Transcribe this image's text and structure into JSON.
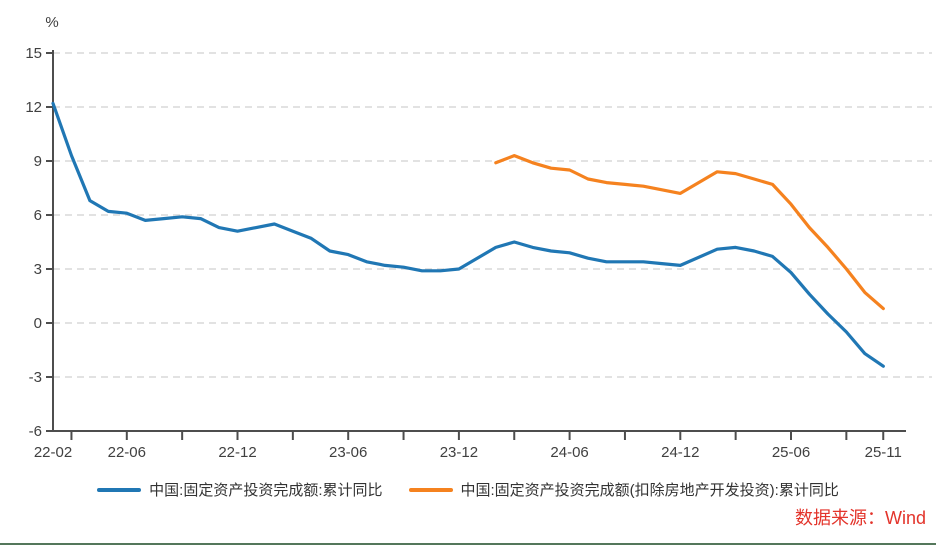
{
  "unit_label": "%",
  "source_note": "数据来源：Wind",
  "colors": {
    "series1": "#2077B4",
    "series2": "#F5821F",
    "source_text": "#E3342B",
    "grid": "#D9D9D9",
    "axis": "#4D4D4D",
    "tick_label": "#404040",
    "legend_text": "#333333",
    "bottom_bar": "#54775B"
  },
  "legend": {
    "items": [
      {
        "label": "中国:固定资产投资完成额:累计同比",
        "color": "#2077B4"
      },
      {
        "label": "中国:固定资产投资完成额(扣除房地产开发投资):累计同比",
        "color": "#F5821F"
      }
    ]
  },
  "chart_data": {
    "type": "line",
    "title": "",
    "ylabel": "%",
    "legend_position": "bottom",
    "grid": "dashed-horizontal",
    "y_axis": {
      "min": -6,
      "max": 15,
      "ticks": [
        15,
        12,
        9,
        6,
        3,
        0,
        -3,
        -6
      ]
    },
    "x_axis": {
      "start": "22-02",
      "end": "25-11",
      "labels": [
        "22-02",
        "22-06",
        "22-12",
        "23-06",
        "23-12",
        "24-06",
        "24-12",
        "25-06",
        "25-11"
      ],
      "ticks": [
        "22-03",
        "22-06",
        "22-09",
        "22-12",
        "23-03",
        "23-06",
        "23-09",
        "23-12",
        "24-03",
        "24-06",
        "24-09",
        "24-12",
        "25-03",
        "25-06",
        "25-09",
        "25-11"
      ]
    },
    "series": [
      {
        "name": "中国:固定资产投资完成额:累计同比",
        "color": "#2077B4",
        "points": [
          [
            "22-02",
            12.2
          ],
          [
            "22-03",
            9.3
          ],
          [
            "22-04",
            6.8
          ],
          [
            "22-05",
            6.2
          ],
          [
            "22-06",
            6.1
          ],
          [
            "22-07",
            5.7
          ],
          [
            "22-08",
            5.8
          ],
          [
            "22-09",
            5.9
          ],
          [
            "22-10",
            5.8
          ],
          [
            "22-11",
            5.3
          ],
          [
            "22-12",
            5.1
          ],
          [
            "23-02",
            5.5
          ],
          [
            "23-03",
            5.1
          ],
          [
            "23-04",
            4.7
          ],
          [
            "23-05",
            4.0
          ],
          [
            "23-06",
            3.8
          ],
          [
            "23-07",
            3.4
          ],
          [
            "23-08",
            3.2
          ],
          [
            "23-09",
            3.1
          ],
          [
            "23-10",
            2.9
          ],
          [
            "23-11",
            2.9
          ],
          [
            "23-12",
            3.0
          ],
          [
            "24-02",
            4.2
          ],
          [
            "24-03",
            4.5
          ],
          [
            "24-04",
            4.2
          ],
          [
            "24-05",
            4.0
          ],
          [
            "24-06",
            3.9
          ],
          [
            "24-07",
            3.6
          ],
          [
            "24-08",
            3.4
          ],
          [
            "24-09",
            3.4
          ],
          [
            "24-10",
            3.4
          ],
          [
            "24-11",
            3.3
          ],
          [
            "24-12",
            3.2
          ],
          [
            "25-02",
            4.1
          ],
          [
            "25-03",
            4.2
          ],
          [
            "25-04",
            4.0
          ],
          [
            "25-05",
            3.7
          ],
          [
            "25-06",
            2.8
          ],
          [
            "25-07",
            1.6
          ],
          [
            "25-08",
            0.5
          ],
          [
            "25-09",
            -0.5
          ],
          [
            "25-10",
            -1.7
          ],
          [
            "25-11",
            -2.4
          ]
        ]
      },
      {
        "name": "中国:固定资产投资完成额(扣除房地产开发投资):累计同比",
        "color": "#F5821F",
        "points": [
          [
            "24-02",
            8.9
          ],
          [
            "24-03",
            9.3
          ],
          [
            "24-04",
            8.9
          ],
          [
            "24-05",
            8.6
          ],
          [
            "24-06",
            8.5
          ],
          [
            "24-07",
            8.0
          ],
          [
            "24-08",
            7.8
          ],
          [
            "24-09",
            7.7
          ],
          [
            "24-10",
            7.6
          ],
          [
            "24-11",
            7.4
          ],
          [
            "24-12",
            7.2
          ],
          [
            "25-02",
            8.4
          ],
          [
            "25-03",
            8.3
          ],
          [
            "25-04",
            8.0
          ],
          [
            "25-05",
            7.7
          ],
          [
            "25-06",
            6.6
          ],
          [
            "25-07",
            5.3
          ],
          [
            "25-08",
            4.2
          ],
          [
            "25-09",
            3.0
          ],
          [
            "25-10",
            1.7
          ],
          [
            "25-11",
            0.8
          ]
        ]
      }
    ]
  }
}
